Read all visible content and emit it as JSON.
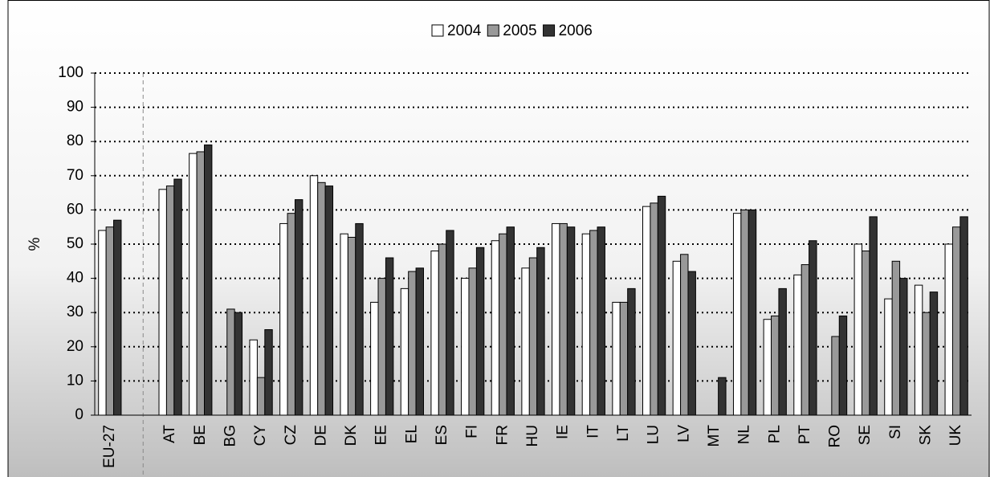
{
  "chart_data": {
    "type": "bar",
    "y_label": "%",
    "categories": [
      "EU-27",
      null,
      "AT",
      "BE",
      "BG",
      "CY",
      "CZ",
      "DE",
      "DK",
      "EE",
      "EL",
      "ES",
      "FI",
      "FR",
      "HU",
      "IE",
      "IT",
      "LT",
      "LU",
      "LV",
      "MT",
      "NL",
      "PL",
      "PT",
      "RO",
      "SE",
      "SI",
      "SK",
      "UK"
    ],
    "series": [
      {
        "name": "2004",
        "color": "#ffffff",
        "values": [
          54,
          null,
          66,
          76.5,
          null,
          22,
          56,
          70,
          53,
          33,
          37,
          48,
          40,
          51,
          43,
          56,
          53,
          33,
          61,
          45,
          null,
          59,
          28,
          41,
          null,
          50,
          34,
          38,
          50
        ]
      },
      {
        "name": "2005",
        "color": "#999999",
        "values": [
          55,
          null,
          67,
          77,
          31,
          11,
          59,
          68,
          52,
          40,
          42,
          50,
          43,
          53,
          46,
          56,
          54,
          33,
          62,
          47,
          null,
          60,
          29,
          44,
          23,
          48,
          45,
          30,
          55
        ]
      },
      {
        "name": "2006",
        "color": "#333333",
        "values": [
          57,
          null,
          69,
          79,
          30,
          25,
          63,
          67,
          56,
          46,
          43,
          54,
          49,
          55,
          49,
          55,
          55,
          37,
          64,
          42,
          11,
          60,
          37,
          51,
          29,
          58,
          40,
          36,
          58
        ]
      }
    ],
    "ylim": [
      0,
      100
    ],
    "yticks": [
      0,
      10,
      20,
      30,
      40,
      50,
      60,
      70,
      80,
      90,
      100
    ],
    "grid": true
  }
}
